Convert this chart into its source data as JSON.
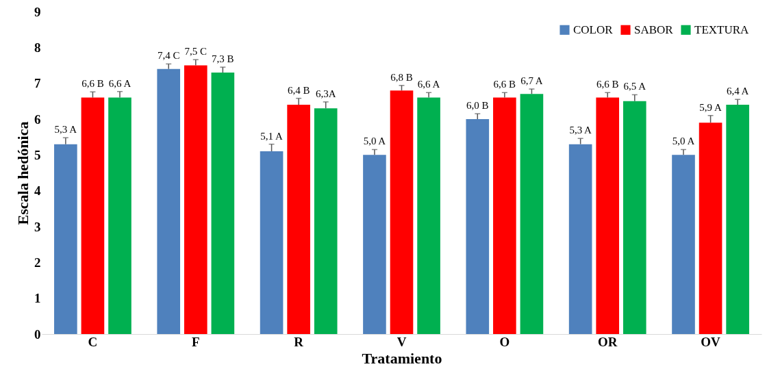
{
  "chart_data": {
    "type": "bar",
    "xlabel": "Tratamiento",
    "ylabel": "Escala hedónica",
    "categories": [
      "C",
      "F",
      "R",
      "V",
      "O",
      "OR",
      "OV"
    ],
    "ylim": [
      0,
      9
    ],
    "yticks": [
      0,
      1,
      2,
      3,
      4,
      5,
      6,
      7,
      8,
      9
    ],
    "grid": false,
    "legend": "top right",
    "series": [
      {
        "name": "COLOR",
        "color": "#4f81bd",
        "values": [
          5.3,
          7.4,
          5.1,
          5.0,
          6.0,
          5.3,
          5.0
        ],
        "errors": [
          [
            5.3,
            5.48
          ],
          [
            7.4,
            7.54
          ],
          [
            5.1,
            5.3
          ],
          [
            5.0,
            5.15
          ],
          [
            6.0,
            6.15
          ],
          [
            5.3,
            5.46
          ],
          [
            5.0,
            5.15
          ]
        ],
        "value_labels": [
          "5,3 A",
          "7,4 C",
          "5,1 A",
          "5,0 A",
          "6,0 B",
          "5,3 A",
          "5,0 A"
        ]
      },
      {
        "name": "SABOR",
        "color": "#ff0000",
        "values": [
          6.6,
          7.5,
          6.4,
          6.8,
          6.6,
          6.6,
          5.9
        ],
        "errors": [
          [
            6.6,
            6.76
          ],
          [
            7.5,
            7.66
          ],
          [
            6.4,
            6.58
          ],
          [
            6.8,
            6.94
          ],
          [
            6.6,
            6.74
          ],
          [
            6.6,
            6.74
          ],
          [
            5.9,
            6.1
          ]
        ],
        "value_labels": [
          "6,6 B",
          "7,5 C",
          "6,4 B",
          "6,8 B",
          "6,6 B",
          "6,6 B",
          "5,9 A"
        ]
      },
      {
        "name": "TEXTURA",
        "color": "#00b050",
        "values": [
          6.6,
          7.3,
          6.3,
          6.6,
          6.7,
          6.5,
          6.4
        ],
        "errors": [
          [
            6.6,
            6.77
          ],
          [
            7.3,
            7.45
          ],
          [
            6.3,
            6.48
          ],
          [
            6.6,
            6.74
          ],
          [
            6.7,
            6.84
          ],
          [
            6.5,
            6.68
          ],
          [
            6.4,
            6.55
          ]
        ],
        "value_labels": [
          "6,6 A",
          "7,3 B",
          "6,3A",
          "6,6 A",
          "6,7 A",
          "6,5 A",
          "6,4 A"
        ]
      }
    ]
  }
}
